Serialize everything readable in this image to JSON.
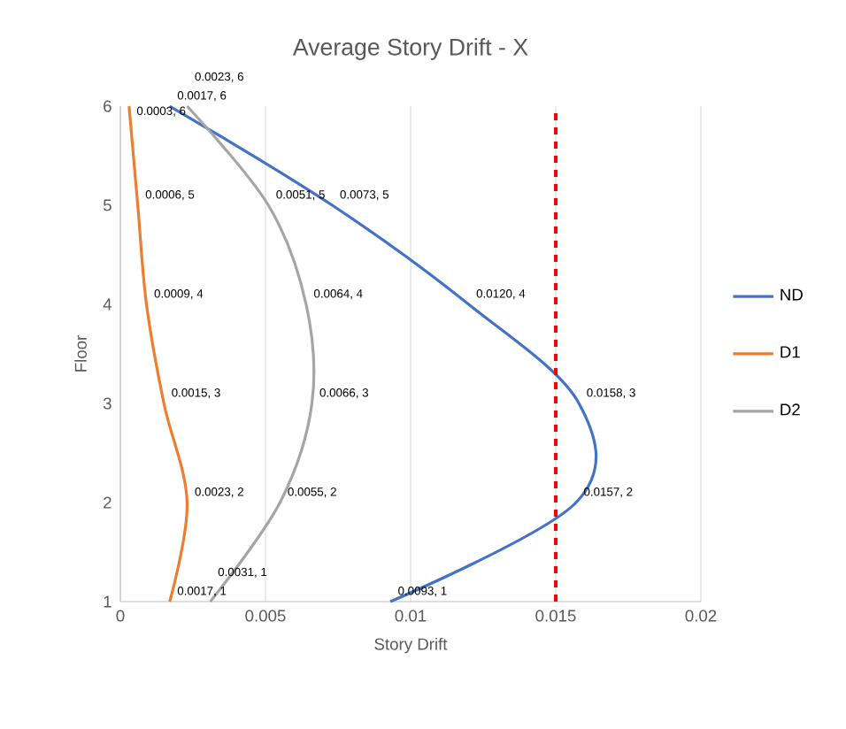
{
  "chart_data": {
    "type": "line",
    "title": "Average Story Drift - X",
    "xlabel": "Story Drift",
    "ylabel": "Floor",
    "xlim": [
      0,
      0.02
    ],
    "xticks": [
      0,
      0.005,
      0.01,
      0.015,
      0.02
    ],
    "ylim": [
      1,
      6
    ],
    "yticks": [
      1,
      2,
      3,
      4,
      5,
      6
    ],
    "grid": "x",
    "legend": "right",
    "marker": "none",
    "line_style": "solid",
    "series": [
      {
        "name": "ND",
        "color": "#4472c4",
        "x": [
          0.0093,
          0.0157,
          0.0158,
          0.012,
          0.0073,
          0.0017
        ],
        "values": [
          1,
          2,
          3,
          4,
          5,
          6
        ],
        "value_labels": [
          "0.0093, 1",
          "0.0157, 2",
          "0.0158, 3",
          "0.0120, 4",
          "0.0073, 5",
          "0.0017, 6"
        ]
      },
      {
        "name": "D1",
        "color": "#ed7d31",
        "x": [
          0.0017,
          0.0023,
          0.0015,
          0.0009,
          0.0006,
          0.0003
        ],
        "values": [
          1,
          2,
          3,
          4,
          5,
          6
        ],
        "value_labels": [
          "0.0017, 1",
          "0.0023, 2",
          "0.0015, 3",
          "0.0009, 4",
          "0.0006, 5",
          "0.0003, 6"
        ]
      },
      {
        "name": "D2",
        "color": "#a5a5a5",
        "x": [
          0.0031,
          0.0055,
          0.0066,
          0.0064,
          0.0051,
          0.0023
        ],
        "values": [
          1,
          2,
          3,
          4,
          5,
          6
        ],
        "value_labels": [
          "0.0031, 1",
          "0.0055, 2",
          "0.0066, 3",
          "0.0064, 4",
          "0.0051, 5",
          "0.0023, 6"
        ]
      }
    ],
    "ref_lines": [
      {
        "axis": "x",
        "value": 0.015,
        "color": "#ff0000",
        "line_style": "dashed"
      }
    ]
  }
}
